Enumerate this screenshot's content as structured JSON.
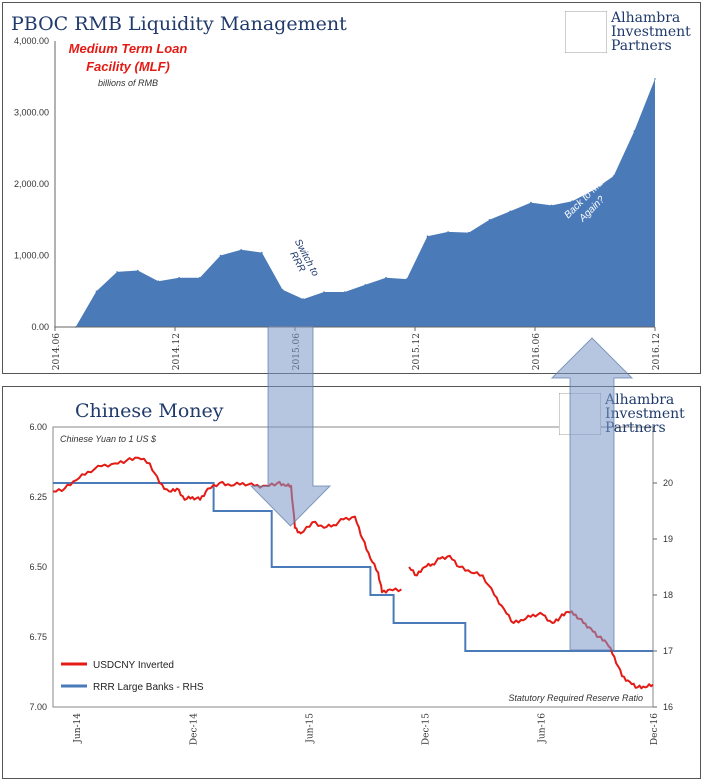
{
  "brand": {
    "line1": "Alhambra",
    "line2": "Investment",
    "line3": "Partners",
    "color": "#1f3a6b"
  },
  "chart_data": [
    {
      "type": "area",
      "title": "PBOC RMB Liquidity Management",
      "series_label_line1": "Medium Term Loan",
      "series_label_line2": "Facility (MLF)",
      "units_label": "billions of RMB",
      "color": "#4a7ab8",
      "ylim": [
        0,
        4000
      ],
      "yticks": [
        "0.00",
        "1,000.00",
        "2,000.00",
        "3,000.00",
        "4,000.00"
      ],
      "ytick_values": [
        0,
        1000,
        2000,
        3000,
        4000
      ],
      "xticks": [
        "2014.06",
        "2014.12",
        "2015.06",
        "2015.12",
        "2016.06",
        "2016.12"
      ],
      "xtick_index": [
        0,
        6,
        12,
        18,
        24,
        30
      ],
      "values": [
        0,
        0,
        500,
        770,
        790,
        640,
        690,
        690,
        1000,
        1080,
        1040,
        520,
        390,
        490,
        490,
        590,
        690,
        670,
        1270,
        1330,
        1320,
        1500,
        1620,
        1740,
        1700,
        1760,
        1910,
        2110,
        2740,
        3470
      ],
      "annotations": [
        {
          "text_line1": "Switch to",
          "text_line2": "RRR"
        },
        {
          "text_line1": "Back to MLF",
          "text_line2": "Again?"
        }
      ]
    },
    {
      "type": "line",
      "title": "Chinese Money",
      "subtitle": "Chinese Yuan to 1 US $",
      "rhs_note": "Statutory Required Reserve Ratio",
      "ylim_left": [
        7.0,
        6.0
      ],
      "yticks_left": [
        "6.00",
        "6.25",
        "6.50",
        "6.75",
        "7.00"
      ],
      "ytick_left_values": [
        6.0,
        6.25,
        6.5,
        6.75,
        7.0
      ],
      "ylim_right": [
        16,
        21
      ],
      "yticks_right": [
        "16",
        "17",
        "18",
        "19",
        "20"
      ],
      "ytick_right_values": [
        16,
        17,
        18,
        19,
        20
      ],
      "xticks": [
        "Jun-14",
        "Dec-14",
        "Jun-15",
        "Dec-15",
        "Jun-16",
        "Dec-16"
      ],
      "xlim_months": [
        0,
        31
      ],
      "series": [
        {
          "name": "USDCNY Inverted",
          "color": "#e31b14",
          "points": [
            [
              0,
              6.23
            ],
            [
              0.6,
              6.22
            ],
            [
              1.2,
              6.19
            ],
            [
              1.8,
              6.16
            ],
            [
              2.5,
              6.14
            ],
            [
              3.2,
              6.13
            ],
            [
              3.8,
              6.12
            ],
            [
              4.4,
              6.11
            ],
            [
              5.0,
              6.13
            ],
            [
              5.5,
              6.2
            ],
            [
              6.0,
              6.23
            ],
            [
              6.4,
              6.22
            ],
            [
              6.8,
              6.26
            ],
            [
              7.2,
              6.25
            ],
            [
              7.6,
              6.26
            ],
            [
              8.0,
              6.22
            ],
            [
              8.6,
              6.2
            ],
            [
              9.2,
              6.21
            ],
            [
              9.8,
              6.2
            ],
            [
              10.4,
              6.21
            ],
            [
              11.0,
              6.21
            ],
            [
              11.6,
              6.2
            ],
            [
              12.0,
              6.21
            ],
            [
              12.3,
              6.21
            ],
            [
              12.5,
              6.36
            ],
            [
              12.8,
              6.38
            ],
            [
              13.4,
              6.34
            ],
            [
              14.0,
              6.36
            ],
            [
              14.5,
              6.35
            ],
            [
              15.0,
              6.33
            ],
            [
              15.6,
              6.32
            ],
            [
              16.0,
              6.4
            ],
            [
              16.4,
              6.47
            ],
            [
              16.8,
              6.52
            ],
            [
              17.0,
              6.59
            ],
            [
              17.4,
              6.58
            ],
            [
              18.0,
              6.58
            ]
          ],
          "segment2": [
            [
              18.4,
              6.5
            ],
            [
              18.8,
              6.53
            ],
            [
              19.2,
              6.5
            ],
            [
              19.6,
              6.49
            ],
            [
              20.0,
              6.47
            ],
            [
              20.5,
              6.46
            ],
            [
              21.0,
              6.5
            ],
            [
              21.6,
              6.52
            ],
            [
              22.2,
              6.53
            ],
            [
              22.8,
              6.6
            ],
            [
              23.3,
              6.65
            ],
            [
              23.8,
              6.7
            ],
            [
              24.3,
              6.69
            ],
            [
              24.8,
              6.67
            ],
            [
              25.3,
              6.67
            ],
            [
              25.8,
              6.7
            ],
            [
              26.2,
              6.68
            ],
            [
              26.6,
              6.66
            ],
            [
              27.0,
              6.67
            ],
            [
              27.4,
              6.7
            ],
            [
              27.8,
              6.72
            ],
            [
              28.2,
              6.75
            ],
            [
              28.6,
              6.77
            ],
            [
              29.0,
              6.82
            ],
            [
              29.4,
              6.89
            ],
            [
              29.8,
              6.91
            ],
            [
              30.2,
              6.93
            ],
            [
              30.6,
              6.93
            ],
            [
              31.0,
              6.92
            ]
          ]
        },
        {
          "name": "RRR Large Banks - RHS",
          "color": "#4a7ab8",
          "steps": [
            [
              0,
              20
            ],
            [
              8.3,
              20
            ],
            [
              8.3,
              19.5
            ],
            [
              11.3,
              19.5
            ],
            [
              11.3,
              18.5
            ],
            [
              16.4,
              18.5
            ],
            [
              16.4,
              18
            ],
            [
              17.6,
              18
            ],
            [
              17.6,
              17.5
            ],
            [
              21.3,
              17.5
            ],
            [
              21.3,
              17
            ],
            [
              31,
              17
            ]
          ]
        }
      ]
    }
  ]
}
